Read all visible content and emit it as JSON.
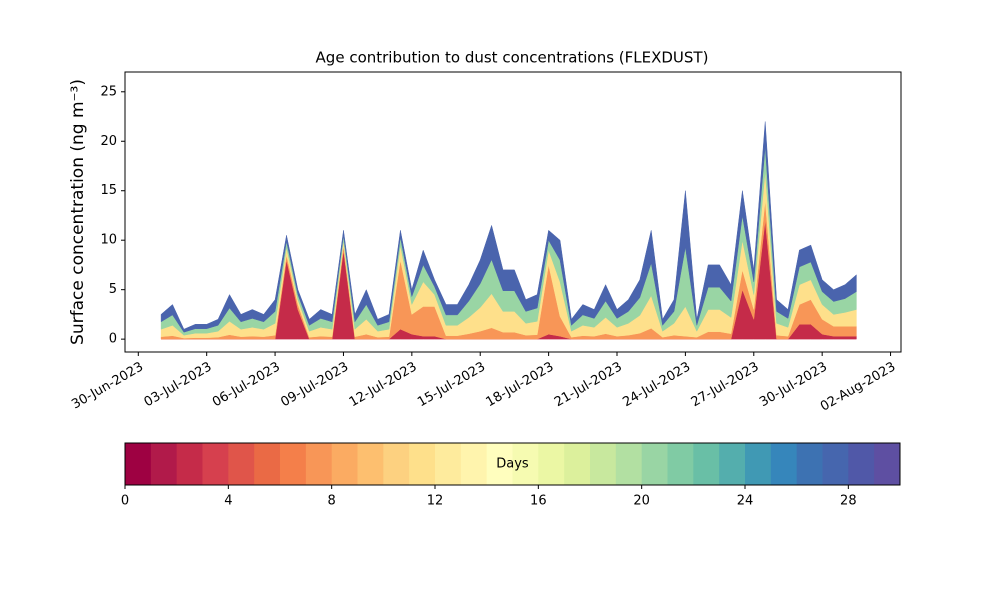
{
  "chart_data": {
    "type": "stacked-area",
    "title": "Age contribution to dust concentrations (FLEXDUST)",
    "y_label": "Surface concentration (ng m⁻³)",
    "x": [
      "2023-07-01T00:00",
      "2023-07-01T12:00",
      "2023-07-02T00:00",
      "2023-07-02T12:00",
      "2023-07-03T00:00",
      "2023-07-03T12:00",
      "2023-07-04T00:00",
      "2023-07-04T12:00",
      "2023-07-05T00:00",
      "2023-07-05T12:00",
      "2023-07-06T00:00",
      "2023-07-06T12:00",
      "2023-07-07T00:00",
      "2023-07-07T12:00",
      "2023-07-08T00:00",
      "2023-07-08T12:00",
      "2023-07-09T00:00",
      "2023-07-09T12:00",
      "2023-07-10T00:00",
      "2023-07-10T12:00",
      "2023-07-11T00:00",
      "2023-07-11T12:00",
      "2023-07-12T00:00",
      "2023-07-12T12:00",
      "2023-07-13T00:00",
      "2023-07-13T12:00",
      "2023-07-14T00:00",
      "2023-07-14T12:00",
      "2023-07-15T00:00",
      "2023-07-15T12:00",
      "2023-07-16T00:00",
      "2023-07-16T12:00",
      "2023-07-17T00:00",
      "2023-07-17T12:00",
      "2023-07-18T00:00",
      "2023-07-18T12:00",
      "2023-07-19T00:00",
      "2023-07-19T12:00",
      "2023-07-20T00:00",
      "2023-07-20T12:00",
      "2023-07-21T00:00",
      "2023-07-21T12:00",
      "2023-07-22T00:00",
      "2023-07-22T12:00",
      "2023-07-23T00:00",
      "2023-07-23T12:00",
      "2023-07-24T00:00",
      "2023-07-24T12:00",
      "2023-07-25T00:00",
      "2023-07-25T12:00",
      "2023-07-26T00:00",
      "2023-07-26T12:00",
      "2023-07-27T00:00",
      "2023-07-27T12:00",
      "2023-07-28T00:00",
      "2023-07-28T12:00",
      "2023-07-29T00:00",
      "2023-07-29T12:00",
      "2023-07-30T00:00",
      "2023-07-30T12:00",
      "2023-07-31T00:00",
      "2023-07-31T12:00"
    ],
    "series": [
      {
        "color": "#c52b49",
        "values": [
          0,
          0,
          0,
          0,
          0,
          0,
          0,
          0,
          0,
          0,
          0,
          8,
          3,
          0,
          0,
          0,
          9,
          0,
          0,
          0,
          0,
          1,
          0.5,
          0.3,
          0.3,
          0,
          0,
          0,
          0,
          0,
          0,
          0,
          0,
          0,
          0.5,
          0.3,
          0,
          0,
          0,
          0,
          0,
          0,
          0,
          0,
          0,
          0,
          0,
          0,
          0,
          0,
          0,
          5,
          2,
          12,
          0,
          0,
          1.5,
          1.5,
          0.5,
          0.3,
          0.3,
          0.3
        ]
      },
      {
        "color": "#f89657",
        "values": [
          0.25,
          0.35,
          0.1,
          0.15,
          0.15,
          0.2,
          0.45,
          0.25,
          0.3,
          0.25,
          0.4,
          0.5,
          0.5,
          0.2,
          0.3,
          0.25,
          0.5,
          0.25,
          0.5,
          0.2,
          0.25,
          7,
          2,
          3,
          3,
          0.35,
          0.35,
          0.55,
          0.8,
          1.15,
          0.7,
          0.7,
          0.4,
          0.45,
          7,
          2,
          0.2,
          0.35,
          0.3,
          0.55,
          0.3,
          0.4,
          0.6,
          1.1,
          0.2,
          0.4,
          0.3,
          0.2,
          0.75,
          0.75,
          0.55,
          2,
          1,
          2,
          0.4,
          0.3,
          2,
          2.5,
          1.5,
          1,
          1,
          1
        ]
      },
      {
        "color": "#fee08b",
        "values": [
          0.75,
          1.05,
          0.3,
          0.45,
          0.45,
          0.6,
          1.35,
          0.75,
          0.9,
          0.75,
          1.2,
          0.8,
          0.5,
          0.6,
          0.9,
          0.75,
          0.5,
          0.75,
          1.5,
          0.6,
          0.75,
          1.5,
          1,
          2.5,
          1.2,
          1.05,
          1.05,
          1.65,
          2.4,
          3.45,
          2.1,
          2.1,
          1.2,
          1.35,
          1.5,
          3.5,
          0.6,
          1.05,
          0.9,
          1.65,
          0.9,
          1.2,
          1.8,
          3.3,
          0.6,
          1.2,
          3,
          0.6,
          2.25,
          2.25,
          1.65,
          3,
          1.5,
          3,
          1.2,
          0.9,
          2,
          2,
          1.5,
          1.2,
          1.4,
          1.7
        ]
      },
      {
        "color": "#99d5a4",
        "values": [
          0.75,
          1.05,
          0.3,
          0.45,
          0.45,
          0.6,
          1.35,
          0.75,
          0.9,
          0.75,
          1.2,
          0.6,
          0.5,
          0.6,
          0.9,
          0.75,
          0.5,
          0.75,
          1.5,
          0.6,
          0.75,
          0.8,
          0.8,
          1.7,
          0.8,
          1.05,
          1.05,
          1.65,
          2.4,
          3.45,
          2.1,
          2.1,
          1.2,
          1.35,
          1,
          2.2,
          0.6,
          1.05,
          0.9,
          1.65,
          0.9,
          1.2,
          1.8,
          3.3,
          0.6,
          1.2,
          6,
          0.6,
          2.25,
          2.25,
          1.65,
          2.5,
          1.3,
          2.5,
          1.2,
          0.9,
          1.8,
          1.8,
          1.3,
          1.3,
          1.4,
          1.8
        ]
      },
      {
        "color": "#4a64ad",
        "values": [
          0.75,
          1.05,
          0.3,
          0.45,
          0.45,
          0.6,
          1.35,
          0.75,
          0.9,
          0.75,
          1.2,
          0.6,
          0.5,
          0.6,
          0.9,
          0.75,
          0.5,
          0.75,
          1.5,
          0.6,
          0.75,
          0.7,
          0.7,
          1.5,
          0.7,
          1.05,
          1.05,
          1.65,
          2.4,
          3.45,
          2.1,
          2.1,
          1.2,
          1.35,
          1,
          2,
          0.6,
          1.05,
          0.9,
          1.65,
          0.9,
          1.2,
          1.8,
          3.3,
          0.6,
          1.2,
          5.7,
          0.6,
          2.25,
          2.25,
          1.65,
          2.5,
          1.2,
          2.5,
          1.2,
          0.9,
          1.7,
          1.7,
          1.2,
          1.2,
          1.4,
          1.7
        ]
      }
    ],
    "xlim": [
      "2023-06-29T10:00",
      "2023-08-02T11:00"
    ],
    "xticks": [
      {
        "value": "2023-06-30",
        "label": "30-Jun-2023"
      },
      {
        "value": "2023-07-03",
        "label": "03-Jul-2023"
      },
      {
        "value": "2023-07-06",
        "label": "06-Jul-2023"
      },
      {
        "value": "2023-07-09",
        "label": "09-Jul-2023"
      },
      {
        "value": "2023-07-12",
        "label": "12-Jul-2023"
      },
      {
        "value": "2023-07-15",
        "label": "15-Jul-2023"
      },
      {
        "value": "2023-07-18",
        "label": "18-Jul-2023"
      },
      {
        "value": "2023-07-21",
        "label": "21-Jul-2023"
      },
      {
        "value": "2023-07-24",
        "label": "24-Jul-2023"
      },
      {
        "value": "2023-07-27",
        "label": "27-Jul-2023"
      },
      {
        "value": "2023-07-30",
        "label": "30-Jul-2023"
      },
      {
        "value": "2023-08-02",
        "label": "02-Aug-2023"
      }
    ],
    "ylim": [
      -1.3,
      27
    ],
    "yticks": [
      0,
      5,
      10,
      15,
      20,
      25
    ],
    "colorbar": {
      "label": "Days",
      "lim": [
        0,
        30
      ],
      "ticks": [
        0,
        4,
        8,
        12,
        16,
        20,
        24,
        28
      ],
      "colors": [
        "#9e0142",
        "#b11a4a",
        "#c52b49",
        "#d6404e",
        "#e0554a",
        "#ea6a45",
        "#f47f4a",
        "#f89657",
        "#fbab62",
        "#fdbf6f",
        "#fdd180",
        "#fee08b",
        "#feeb9d",
        "#fff4ad",
        "#fffebe",
        "#f6fbb1",
        "#ebf7a4",
        "#dcf09c",
        "#c8e89e",
        "#b2e0a2",
        "#99d5a4",
        "#80cba4",
        "#69bfa6",
        "#54aead",
        "#4099b4",
        "#3686bb",
        "#3d72b2",
        "#4666ae",
        "#5058a8",
        "#5e4fa2"
      ]
    }
  }
}
